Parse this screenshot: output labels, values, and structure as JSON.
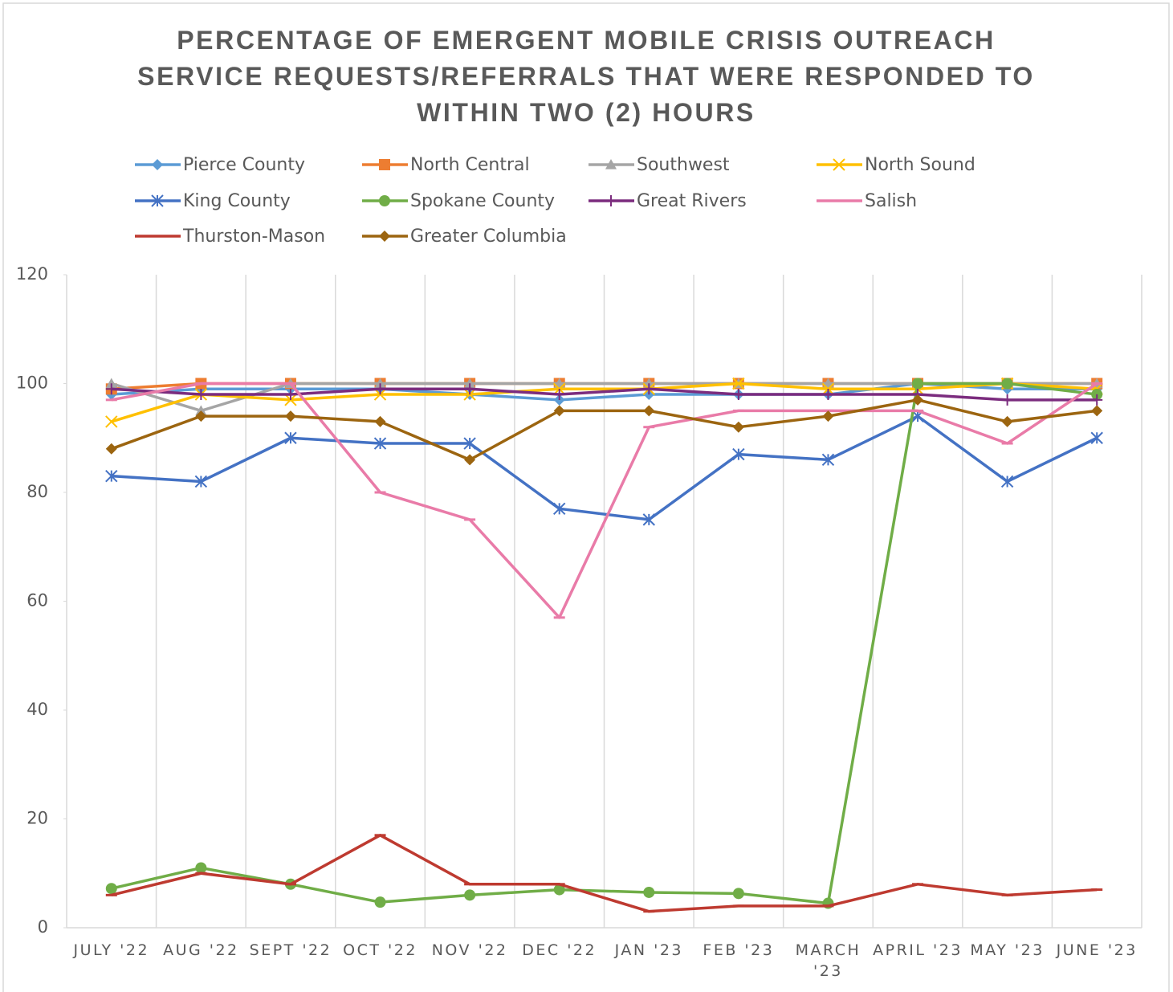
{
  "chart_data": {
    "type": "line",
    "title": "PERCENTAGE OF EMERGENT MOBILE CRISIS OUTREACH SERVICE REQUESTS/REFERRALS THAT WERE RESPONDED TO WITHIN TWO (2) HOURS",
    "categories": [
      "JULY '22",
      "AUG '22",
      "SEPT '22",
      "OCT '22",
      "NOV '22",
      "DEC '22",
      "JAN '23",
      "FEB '23",
      "MARCH '23",
      "APRIL '23",
      "MAY '23",
      "JUNE '23"
    ],
    "ylim": [
      0,
      120
    ],
    "yticks": [
      0,
      20,
      40,
      60,
      80,
      100,
      120
    ],
    "grid": true,
    "legend": "top",
    "series": [
      {
        "name": "Pierce County",
        "color": "#5B9BD5",
        "marker": "diamond",
        "values": [
          98,
          99,
          99,
          99,
          98,
          97,
          98,
          98,
          98,
          100,
          99,
          99
        ]
      },
      {
        "name": "North Central",
        "color": "#ED7D31",
        "marker": "square",
        "values": [
          99,
          100,
          100,
          100,
          100,
          100,
          100,
          100,
          100,
          100,
          100,
          100
        ]
      },
      {
        "name": "Southwest",
        "color": "#A5A5A5",
        "marker": "triangle",
        "values": [
          100,
          95,
          100,
          100,
          100,
          100,
          100,
          100,
          100,
          100,
          100,
          100
        ]
      },
      {
        "name": "North Sound",
        "color": "#FFC000",
        "marker": "x",
        "values": [
          93,
          98,
          97,
          98,
          98,
          99,
          99,
          100,
          99,
          99,
          100,
          99
        ]
      },
      {
        "name": "King County",
        "color": "#4472C4",
        "marker": "star",
        "values": [
          83,
          82,
          90,
          89,
          89,
          77,
          75,
          87,
          86,
          94,
          82,
          90
        ]
      },
      {
        "name": "Spokane County",
        "color": "#70AD47",
        "marker": "circle",
        "values": [
          7.2,
          11,
          8,
          4.7,
          6,
          7,
          6.5,
          6.3,
          4.5,
          100,
          100,
          98
        ]
      },
      {
        "name": "Great Rivers",
        "color": "#7B2C7E",
        "marker": "plus",
        "values": [
          99,
          98,
          98,
          99,
          99,
          98,
          99,
          98,
          98,
          98,
          97,
          97
        ]
      },
      {
        "name": "Salish",
        "color": "#E97BA8",
        "marker": "dash",
        "values": [
          97,
          100,
          100,
          80,
          75,
          57,
          92,
          95,
          95,
          95,
          89,
          100
        ]
      },
      {
        "name": "Thurston-Mason",
        "color": "#BE3A30",
        "marker": "dash",
        "values": [
          6,
          10,
          8,
          17,
          8,
          8,
          3,
          4,
          4,
          8,
          6,
          7
        ]
      },
      {
        "name": "Greater Columbia",
        "color": "#9C6510",
        "marker": "diamond",
        "values": [
          88,
          94,
          94,
          93,
          86,
          95,
          95,
          92,
          94,
          97,
          93,
          95
        ]
      }
    ]
  }
}
